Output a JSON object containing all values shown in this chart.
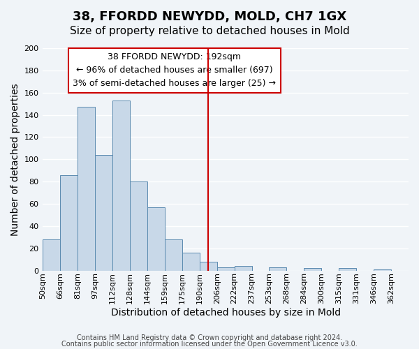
{
  "title": "38, FFORDD NEWYDD, MOLD, CH7 1GX",
  "subtitle": "Size of property relative to detached houses in Mold",
  "xlabel": "Distribution of detached houses by size in Mold",
  "ylabel": "Number of detached properties",
  "bin_labels": [
    "50sqm",
    "66sqm",
    "81sqm",
    "97sqm",
    "112sqm",
    "128sqm",
    "144sqm",
    "159sqm",
    "175sqm",
    "190sqm",
    "206sqm",
    "222sqm",
    "237sqm",
    "253sqm",
    "268sqm",
    "284sqm",
    "300sqm",
    "315sqm",
    "331sqm",
    "346sqm",
    "362sqm"
  ],
  "bar_values": [
    28,
    86,
    147,
    104,
    153,
    80,
    57,
    28,
    16,
    8,
    3,
    4,
    0,
    3,
    0,
    2,
    0,
    2,
    0,
    1
  ],
  "bar_color": "#c8d8e8",
  "bar_edge_color": "#5a8ab0",
  "ylim": [
    0,
    200
  ],
  "yticks": [
    0,
    20,
    40,
    60,
    80,
    100,
    120,
    140,
    160,
    180,
    200
  ],
  "property_line_x": 9.5,
  "annotation_title": "38 FFORDD NEWYDD: 192sqm",
  "annotation_line1": "← 96% of detached houses are smaller (697)",
  "annotation_line2": "3% of semi-detached houses are larger (25) →",
  "annotation_box_color": "#cc0000",
  "footer_line1": "Contains HM Land Registry data © Crown copyright and database right 2024.",
  "footer_line2": "Contains public sector information licensed under the Open Government Licence v3.0.",
  "background_color": "#f0f4f8",
  "grid_color": "#ffffff",
  "title_fontsize": 13,
  "subtitle_fontsize": 11,
  "axis_label_fontsize": 10,
  "tick_fontsize": 8,
  "annotation_fontsize": 9,
  "footer_fontsize": 7
}
